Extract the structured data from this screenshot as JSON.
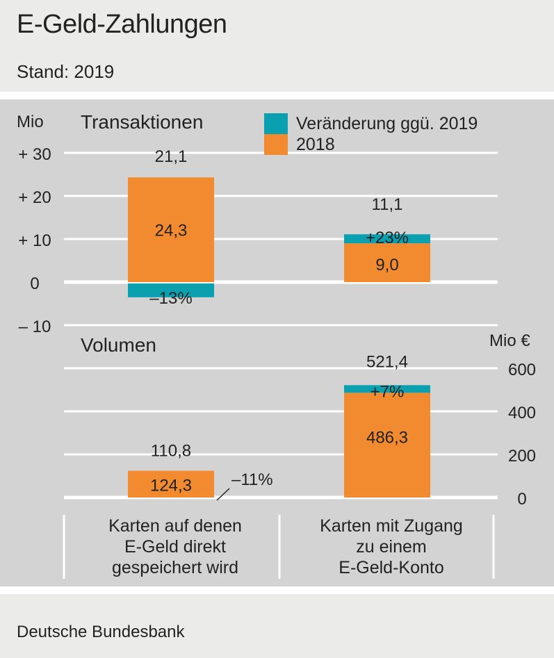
{
  "title": "E-Geld-Zahlungen",
  "subtitle": "Stand: 2019",
  "footer": "Deutsche Bundesbank",
  "colors": {
    "change": "#0aa0b0",
    "base": "#f28a30",
    "panel": "#d3d3d3",
    "gridline": "#ffffff"
  },
  "categories": [
    "Karten auf denen E-Geld direkt gespeichert wird",
    "Karten mit Zugang zu einem E-Geld-Konto"
  ],
  "category_lines": [
    [
      "Karten auf denen",
      "E-Geld direkt",
      "gespeichert wird"
    ],
    [
      "Karten mit Zugang",
      "zu einem",
      "E-Geld-Konto"
    ]
  ],
  "legend": [
    {
      "label": "Veränderung ggü. 2019",
      "color": "#0aa0b0"
    },
    {
      "label": "2018",
      "color": "#f28a30"
    }
  ],
  "chart_data": [
    {
      "type": "bar",
      "title": "Transaktionen",
      "ylabel": "Mio",
      "ylim": [
        -10,
        30
      ],
      "yticks": [
        30,
        20,
        10,
        0,
        -10
      ],
      "ytick_labels": [
        "+ 30",
        "+ 20",
        "+ 10",
        "0",
        "– 10"
      ],
      "categories": [
        "Karten auf denen E-Geld direkt gespeichert wird",
        "Karten mit Zugang zu einem E-Geld-Konto"
      ],
      "series": [
        {
          "name": "2018",
          "values": [
            24.3,
            9.0
          ],
          "labels": [
            "24,3",
            "9,0"
          ]
        },
        {
          "name": "Veränderung ggü. 2019",
          "values": [
            -3.2,
            2.1
          ],
          "labels": [
            "–13%",
            "+23%"
          ]
        }
      ],
      "totals_2019": [
        21.1,
        11.1
      ],
      "totals_2019_labels": [
        "21,1",
        "11,1"
      ]
    },
    {
      "type": "bar",
      "title": "Volumen",
      "ylabel": "Mio €",
      "ylim": [
        0,
        600
      ],
      "yticks": [
        600,
        400,
        200,
        0
      ],
      "ytick_labels": [
        "600",
        "400",
        "200",
        "0"
      ],
      "categories": [
        "Karten auf denen E-Geld direkt gespeichert wird",
        "Karten mit Zugang zu einem E-Geld-Konto"
      ],
      "series": [
        {
          "name": "2018",
          "values": [
            124.3,
            486.3
          ],
          "labels": [
            "124,3",
            "486,3"
          ]
        },
        {
          "name": "Veränderung ggü. 2019",
          "values": [
            -13.5,
            35.1
          ],
          "labels": [
            "–11%",
            "+7%"
          ]
        }
      ],
      "totals_2019": [
        110.8,
        521.4
      ],
      "totals_2019_labels": [
        "110,8",
        "521,4"
      ]
    }
  ]
}
